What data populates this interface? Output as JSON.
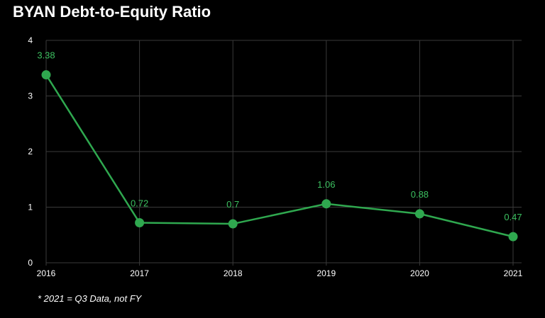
{
  "title": "BYAN Debt-to-Equity Ratio",
  "footnote": "* 2021 = Q3 Data, not FY",
  "chart_data": {
    "type": "line",
    "categories": [
      "2016",
      "2017",
      "2018",
      "2019",
      "2020",
      "2021"
    ],
    "series": [
      {
        "values": [
          3.38,
          0.72,
          0.7,
          1.06,
          0.88,
          0.47
        ],
        "labels": [
          "3.38",
          "0.72",
          "0.7",
          "1.06",
          "0.88",
          "0.47"
        ]
      }
    ],
    "ylim": [
      0,
      4
    ],
    "yticks": [
      "0",
      "1",
      "2",
      "3",
      "4"
    ],
    "xlabel": "",
    "ylabel": "",
    "grid": true,
    "colors": {
      "line": "#2fa84f",
      "label": "#3cc060",
      "grid": "#3a3a3a",
      "background": "#000000"
    }
  }
}
